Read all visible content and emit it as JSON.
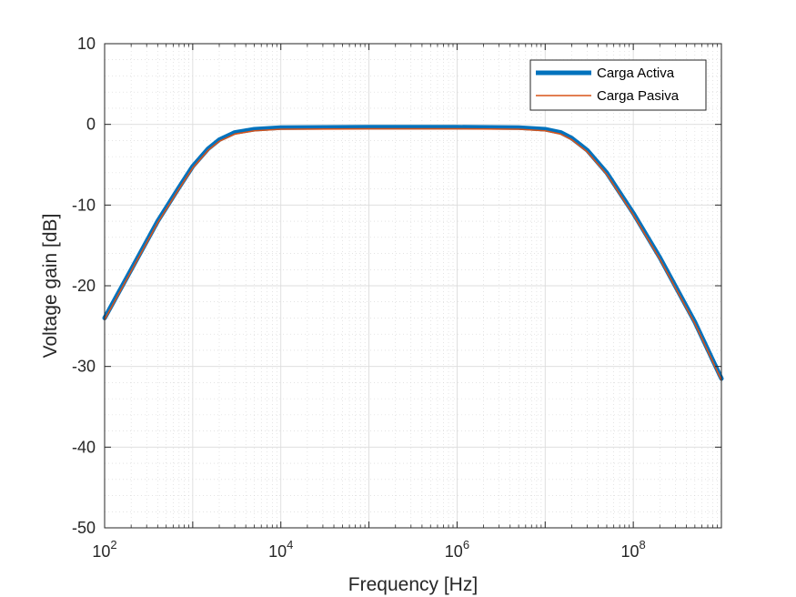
{
  "chart_data": {
    "type": "line",
    "xscale": "log",
    "xlim": [
      100,
      1000000000
    ],
    "ylim": [
      -50,
      10
    ],
    "xlabel": "Frequency [Hz]",
    "ylabel": "Voltage gain [dB]",
    "grid": true,
    "minor_grid": true,
    "legend_position": "top-right",
    "xticks": [
      {
        "value": 100,
        "base": "10",
        "exp": "2"
      },
      {
        "value": 10000,
        "base": "10",
        "exp": "4"
      },
      {
        "value": 1000000,
        "base": "10",
        "exp": "6"
      },
      {
        "value": 100000000,
        "base": "10",
        "exp": "8"
      }
    ],
    "yticks": [
      {
        "value": 10,
        "label": "10"
      },
      {
        "value": 0,
        "label": "0"
      },
      {
        "value": -10,
        "label": "-10"
      },
      {
        "value": -20,
        "label": "-20"
      },
      {
        "value": -30,
        "label": "-30"
      },
      {
        "value": -40,
        "label": "-40"
      },
      {
        "value": -50,
        "label": "-50"
      }
    ],
    "series": [
      {
        "name": "Carga Activa",
        "color": "#0072BD",
        "x": [
          100,
          200,
          400,
          700,
          1000,
          1500,
          2000,
          3000,
          5000,
          10000,
          100000,
          1000000,
          5000000,
          10000000,
          15000000,
          20000000,
          30000000,
          50000000,
          100000000,
          200000000,
          500000000,
          1000000000
        ],
        "y": [
          -24,
          -18,
          -12,
          -7.8,
          -5.2,
          -3.0,
          -1.9,
          -1.0,
          -0.6,
          -0.4,
          -0.35,
          -0.35,
          -0.4,
          -0.6,
          -1.0,
          -1.7,
          -3.2,
          -6.0,
          -11.0,
          -16.5,
          -24.5,
          -31.5
        ]
      },
      {
        "name": "Carga Pasiva",
        "color": "#D95319",
        "x": [
          100,
          200,
          400,
          700,
          1000,
          1500,
          2000,
          3000,
          5000,
          10000,
          100000,
          1000000,
          5000000,
          10000000,
          15000000,
          20000000,
          30000000,
          50000000,
          100000000,
          200000000,
          500000000,
          1000000000
        ],
        "y": [
          -24.2,
          -18.2,
          -12.2,
          -8.0,
          -5.4,
          -3.2,
          -2.1,
          -1.2,
          -0.8,
          -0.6,
          -0.55,
          -0.55,
          -0.6,
          -0.8,
          -1.2,
          -1.9,
          -3.4,
          -6.2,
          -11.2,
          -16.7,
          -24.7,
          -31.7
        ]
      }
    ]
  }
}
